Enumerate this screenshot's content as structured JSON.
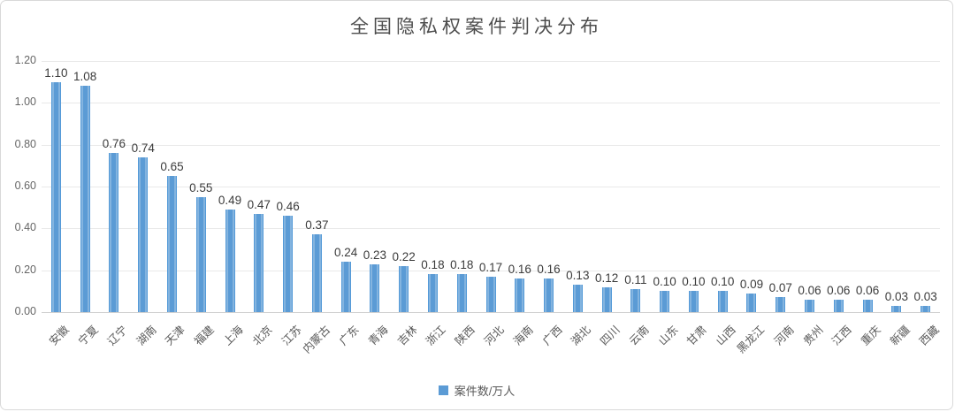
{
  "title": "全国隐私权案件判决分布",
  "legend": {
    "label": "案件数/万人"
  },
  "colors": {
    "bar": "#5b9bd5",
    "grid": "#e9e9e9",
    "axis_text": "#666666",
    "value_text": "#3b3b3b"
  },
  "chart_data": {
    "type": "bar",
    "title": "全国隐私权案件判决分布",
    "categories": [
      "安徽",
      "宁夏",
      "辽宁",
      "湖南",
      "天津",
      "福建",
      "上海",
      "北京",
      "江苏",
      "内蒙古",
      "广东",
      "青海",
      "吉林",
      "浙江",
      "陕西",
      "河北",
      "海南",
      "广西",
      "湖北",
      "四川",
      "云南",
      "山东",
      "甘肃",
      "山西",
      "黑龙江",
      "河南",
      "贵州",
      "江西",
      "重庆",
      "新疆",
      "西藏"
    ],
    "values": [
      1.1,
      1.08,
      0.76,
      0.74,
      0.65,
      0.55,
      0.49,
      0.47,
      0.46,
      0.37,
      0.24,
      0.23,
      0.22,
      0.18,
      0.18,
      0.17,
      0.16,
      0.16,
      0.13,
      0.12,
      0.11,
      0.1,
      0.1,
      0.1,
      0.09,
      0.07,
      0.06,
      0.06,
      0.06,
      0.03,
      0.03
    ],
    "xlabel": "",
    "ylabel": "",
    "ylim": [
      0,
      1.2
    ],
    "yticks": [
      1.2,
      1.0,
      0.8,
      0.6,
      0.4,
      0.2,
      0.0
    ],
    "ytick_labels": [
      "1.20",
      "1.00",
      "0.80",
      "0.60",
      "0.40",
      "0.20",
      "0.00"
    ],
    "value_label_decimals": 2,
    "grid": true,
    "legend": "案件数/万人",
    "legend_position": "bottom"
  }
}
